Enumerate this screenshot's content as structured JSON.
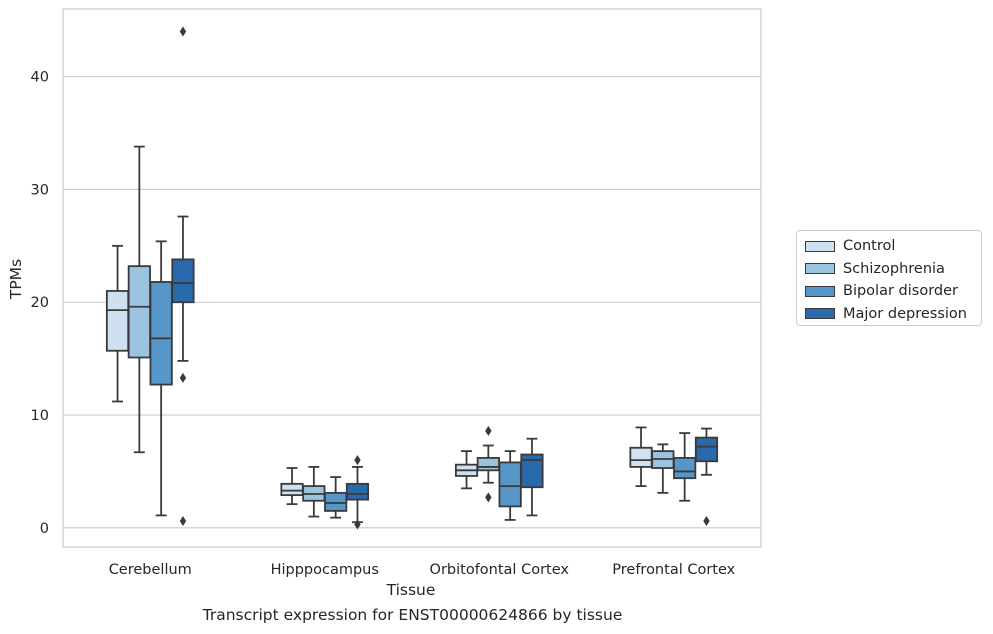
{
  "chart_data": {
    "type": "box",
    "xlabel": "Tissue",
    "ylabel": "TPMs",
    "caption": "Transcript expression for ENST00000624866 by tissue",
    "categories": [
      "Cerebellum",
      "Hipppocampus",
      "Orbitofontal Cortex",
      "Prefrontal Cortex"
    ],
    "ylim": [
      -1.7,
      46
    ],
    "yticks": [
      0,
      10,
      20,
      30,
      40
    ],
    "grid": "horizontal",
    "legend_position": "right",
    "series": [
      {
        "name": "Control",
        "color": "#cfe0f0",
        "boxes": [
          {
            "whislo": 11.2,
            "q1": 15.7,
            "med": 19.3,
            "q3": 21.0,
            "whishi": 25.0,
            "fliers": []
          },
          {
            "whislo": 2.1,
            "q1": 2.9,
            "med": 3.3,
            "q3": 3.9,
            "whishi": 5.3,
            "fliers": []
          },
          {
            "whislo": 3.5,
            "q1": 4.6,
            "med": 5.1,
            "q3": 5.6,
            "whishi": 6.8,
            "fliers": []
          },
          {
            "whislo": 3.7,
            "q1": 5.4,
            "med": 6.0,
            "q3": 7.1,
            "whishi": 8.9,
            "fliers": []
          }
        ]
      },
      {
        "name": "Schizophrenia",
        "color": "#9ac4df",
        "boxes": [
          {
            "whislo": 6.7,
            "q1": 15.1,
            "med": 19.6,
            "q3": 23.2,
            "whishi": 33.8,
            "fliers": []
          },
          {
            "whislo": 1.0,
            "q1": 2.4,
            "med": 3.0,
            "q3": 3.7,
            "whishi": 5.4,
            "fliers": []
          },
          {
            "whislo": 4.0,
            "q1": 5.1,
            "med": 5.4,
            "q3": 6.2,
            "whishi": 7.3,
            "fliers": [
              8.6,
              2.7
            ]
          },
          {
            "whislo": 3.1,
            "q1": 5.3,
            "med": 6.1,
            "q3": 6.8,
            "whishi": 7.4,
            "fliers": []
          }
        ]
      },
      {
        "name": "Bipolar disorder",
        "color": "#5696c8",
        "boxes": [
          {
            "whislo": 1.1,
            "q1": 12.7,
            "med": 16.8,
            "q3": 21.8,
            "whishi": 25.4,
            "fliers": []
          },
          {
            "whislo": 0.9,
            "q1": 1.5,
            "med": 2.2,
            "q3": 3.1,
            "whishi": 4.5,
            "fliers": []
          },
          {
            "whislo": 0.7,
            "q1": 1.9,
            "med": 3.7,
            "q3": 5.8,
            "whishi": 6.8,
            "fliers": []
          },
          {
            "whislo": 2.4,
            "q1": 4.4,
            "med": 5.0,
            "q3": 6.2,
            "whishi": 8.4,
            "fliers": []
          }
        ]
      },
      {
        "name": "Major depression",
        "color": "#2a6aac",
        "boxes": [
          {
            "whislo": 14.8,
            "q1": 20.0,
            "med": 21.7,
            "q3": 23.8,
            "whishi": 27.6,
            "fliers": [
              44.0,
              13.3,
              0.6
            ]
          },
          {
            "whislo": 0.5,
            "q1": 2.5,
            "med": 3.0,
            "q3": 3.9,
            "whishi": 5.4,
            "fliers": [
              6.0,
              0.3
            ]
          },
          {
            "whislo": 1.1,
            "q1": 3.6,
            "med": 6.0,
            "q3": 6.5,
            "whishi": 7.9,
            "fliers": []
          },
          {
            "whislo": 4.7,
            "q1": 5.9,
            "med": 7.2,
            "q3": 8.0,
            "whishi": 8.8,
            "fliers": [
              0.6
            ]
          }
        ]
      }
    ]
  }
}
